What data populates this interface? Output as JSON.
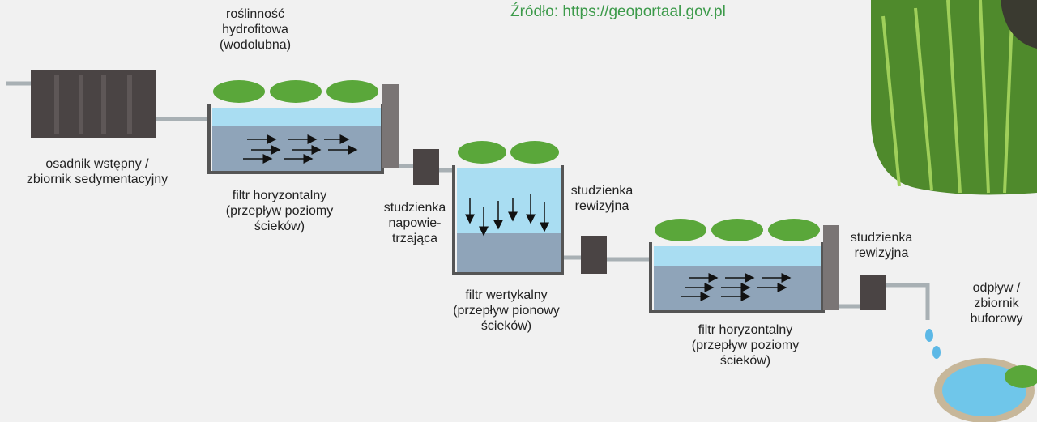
{
  "source": "Źródło: https://geoportaal.gov.pl",
  "labels": [
    {
      "lines": [
        "roślinność",
        "hydrofitowa",
        "(wodolubna)"
      ]
    },
    {
      "lines": [
        "osadnik wstępny /",
        "zbiornik sedymentacyjny"
      ]
    },
    {
      "lines": [
        "filtr horyzontalny",
        "(przepływ poziomy",
        "ścieków)"
      ]
    },
    {
      "lines": [
        "studzienka",
        "napowie-",
        "trzająca"
      ]
    },
    {
      "lines": [
        "studzienka",
        "rewizyjna"
      ]
    },
    {
      "lines": [
        "filtr wertykalny",
        "(przepływ pionowy",
        "ścieków)"
      ]
    },
    {
      "lines": [
        "filtr horyzontalny",
        "(przepływ poziomy",
        "ścieków)"
      ]
    },
    {
      "lines": [
        "studzienka",
        "rewizyjna"
      ]
    },
    {
      "lines": [
        "odpływ /",
        "zbiornik",
        "buforowy"
      ]
    }
  ]
}
